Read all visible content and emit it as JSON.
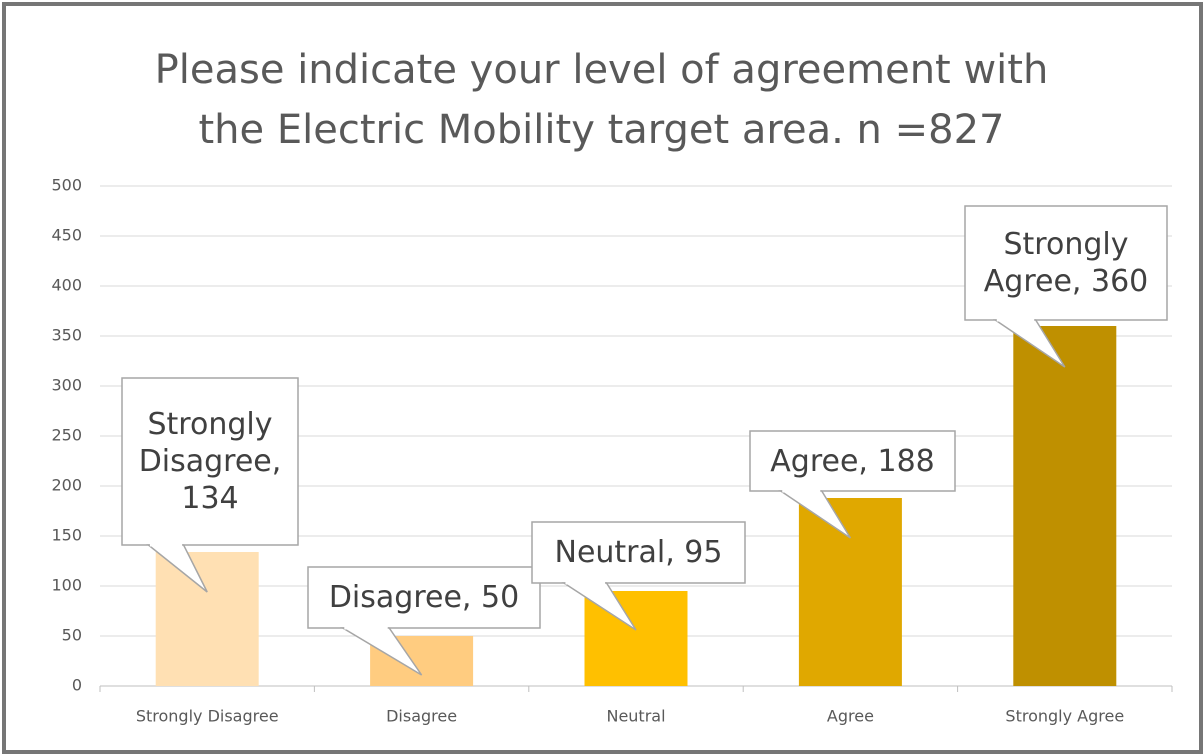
{
  "chart_data": {
    "type": "bar",
    "title": "Please indicate your level of agreement with the Electric Mobility target area. n =827",
    "categories": [
      "Strongly Disagree",
      "Disagree",
      "Neutral",
      "Agree",
      "Strongly Agree"
    ],
    "values": [
      134,
      50,
      95,
      188,
      360
    ],
    "value_labels": [
      "Strongly Disagree, 134",
      "Disagree, 50",
      "Neutral, 95",
      "Agree, 188",
      "Strongly Agree, 360"
    ],
    "colors": [
      "#ffe0b3",
      "#ffcc80",
      "#ffc000",
      "#e0a800",
      "#bf9000"
    ],
    "ylim": [
      0,
      500
    ],
    "yticks": [
      0,
      50,
      100,
      150,
      200,
      250,
      300,
      350,
      400,
      450,
      500
    ],
    "grid": true
  }
}
